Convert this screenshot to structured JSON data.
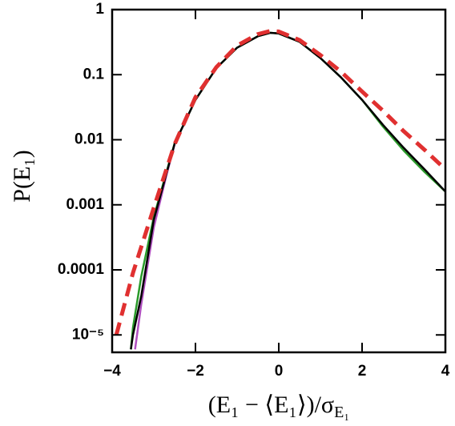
{
  "chart_data": {
    "type": "line",
    "xlabel": "(E₁ − ⟨E₁⟩)/σ",
    "xlabel_sub": "E₁",
    "ylabel": "P(E₁)",
    "xlim": [
      -4,
      4
    ],
    "xticks": [
      {
        "value": -4,
        "label": "−4"
      },
      {
        "value": -2,
        "label": "−2"
      },
      0,
      2,
      4
    ],
    "ylim": [
      5.4e-06,
      1
    ],
    "ylog": true,
    "yticks": [
      1,
      0.1,
      0.01,
      0.001,
      0.0001,
      {
        "value": 1e-05,
        "label": "10⁻⁵"
      }
    ],
    "series": [
      {
        "color": "#b050c0",
        "dash": false,
        "x": [
          -3.45,
          -3.3,
          -3,
          -2.7,
          -2.5
        ],
        "values": [
          6e-06,
          3e-05,
          0.00045,
          0.0028,
          0.0085
        ]
      },
      {
        "color": "#2a9a2a",
        "dash": false,
        "x": [
          -3.55,
          -3.5,
          -3.3,
          -3,
          -2.5,
          -2,
          -1.5,
          -1,
          -0.5,
          -0.2,
          0,
          0.5,
          1,
          1.5,
          2,
          2.5,
          3,
          3.5,
          4
        ],
        "values": [
          6e-06,
          1.3e-05,
          8e-05,
          0.00065,
          0.0088,
          0.041,
          0.126,
          0.26,
          0.39,
          0.44,
          0.43,
          0.32,
          0.18,
          0.09,
          0.041,
          0.016,
          0.0068,
          0.0032,
          0.0016
        ]
      },
      {
        "color": "#000000",
        "dash": false,
        "x": [
          -3.55,
          -3.5,
          -3.3,
          -3,
          -2.5,
          -2,
          -1.5,
          -1,
          -0.5,
          -0.2,
          0,
          0.5,
          1,
          1.5,
          2,
          2.5,
          3,
          3.5,
          4
        ],
        "values": [
          6e-06,
          1e-05,
          4e-05,
          0.00059,
          0.0087,
          0.041,
          0.126,
          0.26,
          0.39,
          0.44,
          0.43,
          0.32,
          0.18,
          0.09,
          0.041,
          0.017,
          0.0075,
          0.0035,
          0.0016
        ]
      },
      {
        "color": "#e03030",
        "dash": true,
        "x": [
          -3.9,
          -3.5,
          -3,
          -2.5,
          -2,
          -1.5,
          -1,
          -0.5,
          -0.2,
          0,
          0.5,
          1,
          1.5,
          2,
          2.5,
          3,
          3.5,
          4
        ],
        "values": [
          1e-05,
          9e-05,
          0.0009,
          0.0085,
          0.045,
          0.13,
          0.28,
          0.42,
          0.47,
          0.46,
          0.34,
          0.2,
          0.11,
          0.055,
          0.028,
          0.0135,
          0.007,
          0.0035
        ]
      }
    ]
  }
}
